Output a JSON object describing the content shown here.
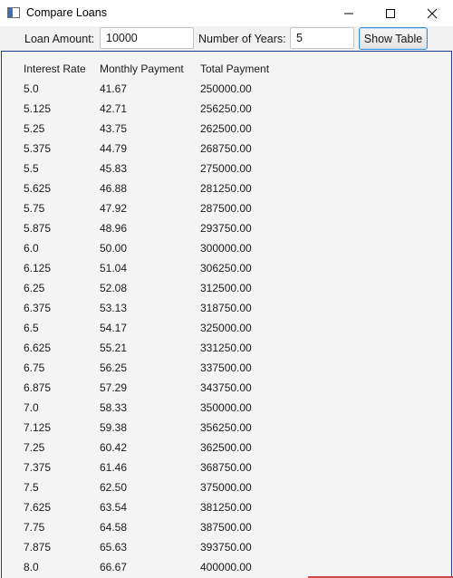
{
  "window": {
    "title": "Compare Loans"
  },
  "toolbar": {
    "loan_amount_label": "Loan Amount:",
    "loan_amount_value": "10000",
    "years_label": "Number of Years:",
    "years_value": "5",
    "show_button_label": "Show Table"
  },
  "table": {
    "headers": [
      "Interest Rate",
      "Monthly Payment",
      "Total Payment"
    ],
    "rows": [
      [
        "5.0",
        "41.67",
        "250000.00"
      ],
      [
        "5.125",
        "42.71",
        "256250.00"
      ],
      [
        "5.25",
        "43.75",
        "262500.00"
      ],
      [
        "5.375",
        "44.79",
        "268750.00"
      ],
      [
        "5.5",
        "45.83",
        "275000.00"
      ],
      [
        "5.625",
        "46.88",
        "281250.00"
      ],
      [
        "5.75",
        "47.92",
        "287500.00"
      ],
      [
        "5.875",
        "48.96",
        "293750.00"
      ],
      [
        "6.0",
        "50.00",
        "300000.00"
      ],
      [
        "6.125",
        "51.04",
        "306250.00"
      ],
      [
        "6.25",
        "52.08",
        "312500.00"
      ],
      [
        "6.375",
        "53.13",
        "318750.00"
      ],
      [
        "6.5",
        "54.17",
        "325000.00"
      ],
      [
        "6.625",
        "55.21",
        "331250.00"
      ],
      [
        "6.75",
        "56.25",
        "337500.00"
      ],
      [
        "6.875",
        "57.29",
        "343750.00"
      ],
      [
        "7.0",
        "58.33",
        "350000.00"
      ],
      [
        "7.125",
        "59.38",
        "356250.00"
      ],
      [
        "7.25",
        "60.42",
        "362500.00"
      ],
      [
        "7.375",
        "61.46",
        "368750.00"
      ],
      [
        "7.5",
        "62.50",
        "375000.00"
      ],
      [
        "7.625",
        "63.54",
        "381250.00"
      ],
      [
        "7.75",
        "64.58",
        "387500.00"
      ],
      [
        "7.875",
        "65.63",
        "393750.00"
      ],
      [
        "8.0",
        "66.67",
        "400000.00"
      ]
    ]
  },
  "icons": {
    "app": "app-window-icon",
    "minimize": "minimize-icon",
    "maximize": "maximize-icon",
    "close": "close-icon"
  }
}
